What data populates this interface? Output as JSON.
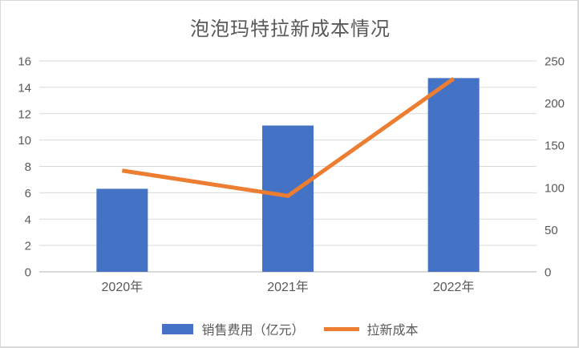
{
  "chart": {
    "title": "泡泡玛特拉新成本情况",
    "title_color": "#595959",
    "text_color": "#595959",
    "gridline_color": "#d9d9d9",
    "axis_line_color": "#d9d9d9",
    "background": "#ffffff"
  },
  "chart_data": {
    "type": "combo",
    "title": "泡泡玛特拉新成本情况",
    "categories": [
      "2020年",
      "2021年",
      "2022年"
    ],
    "series": [
      {
        "name": "销售费用（亿元）",
        "type": "bar",
        "axis": "left",
        "color": "#4472c4",
        "values": [
          6.3,
          11.1,
          14.7
        ]
      },
      {
        "name": "拉新成本",
        "type": "line",
        "axis": "right",
        "color": "#ed7d31",
        "values": [
          120,
          90,
          229
        ]
      }
    ],
    "left_axis": {
      "min": 0,
      "max": 16,
      "step": 2,
      "ticks": [
        0,
        2,
        4,
        6,
        8,
        10,
        12,
        14,
        16
      ]
    },
    "right_axis": {
      "min": 0,
      "max": 250,
      "step": 50,
      "ticks": [
        0,
        50,
        100,
        150,
        200,
        250
      ]
    },
    "grid": true,
    "legend_position": "bottom"
  },
  "legend": {
    "items": [
      {
        "label": "销售费用（亿元）",
        "swatch": "bar",
        "color": "#4472c4"
      },
      {
        "label": "拉新成本",
        "swatch": "line",
        "color": "#ed7d31"
      }
    ]
  }
}
